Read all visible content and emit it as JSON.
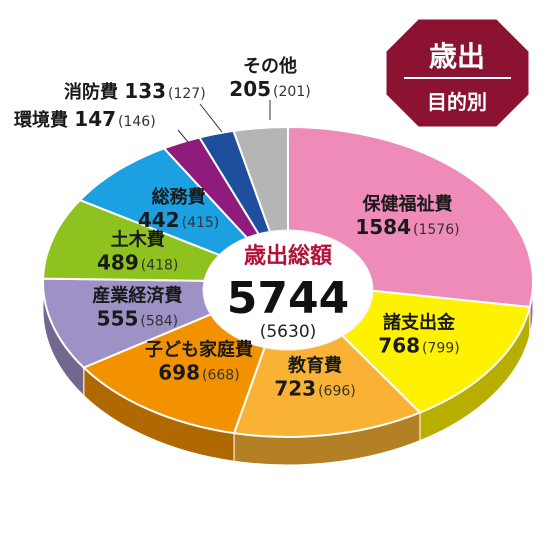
{
  "badge": {
    "line1": "歳出",
    "line2": "目的別",
    "color": "#8b1230"
  },
  "center": {
    "title": "歳出総額",
    "total": "5744",
    "prev": "(5630)",
    "title_color": "#b0123a"
  },
  "chart_data": {
    "type": "pie",
    "title": "",
    "total": 5744,
    "total_prev": 5630,
    "slices": [
      {
        "name": "保健福祉費",
        "value": 1584,
        "prev": 1576,
        "value_text": "1584",
        "prev_text": "(1576)",
        "color": "#ee8bb8"
      },
      {
        "name": "諸支出金",
        "value": 768,
        "prev": 799,
        "value_text": "768",
        "prev_text": "(799)",
        "color": "#fff200"
      },
      {
        "name": "教育費",
        "value": 723,
        "prev": 696,
        "value_text": "723",
        "prev_text": "(696)",
        "color": "#f9b233"
      },
      {
        "name": "子ども家庭費",
        "value": 698,
        "prev": 668,
        "value_text": "698",
        "prev_text": "(668)",
        "color": "#f39200"
      },
      {
        "name": "産業経済費",
        "value": 555,
        "prev": 584,
        "value_text": "555",
        "prev_text": "(584)",
        "color": "#9e91c6"
      },
      {
        "name": "土木費",
        "value": 489,
        "prev": 418,
        "value_text": "489",
        "prev_text": "(418)",
        "color": "#8dc21f"
      },
      {
        "name": "総務費",
        "value": 442,
        "prev": 415,
        "value_text": "442",
        "prev_text": "(415)",
        "color": "#1ba1e2"
      },
      {
        "name": "環境費",
        "value": 147,
        "prev": 146,
        "value_text": "147",
        "prev_text": "(146)",
        "color": "#8f1c7d"
      },
      {
        "name": "消防費",
        "value": 133,
        "prev": 127,
        "value_text": "133",
        "prev_text": "(127)",
        "color": "#1d4f9c"
      },
      {
        "name": "その他",
        "value": 205,
        "prev": 201,
        "value_text": "205",
        "prev_text": "(201)",
        "color": "#b5b5b5"
      }
    ]
  }
}
